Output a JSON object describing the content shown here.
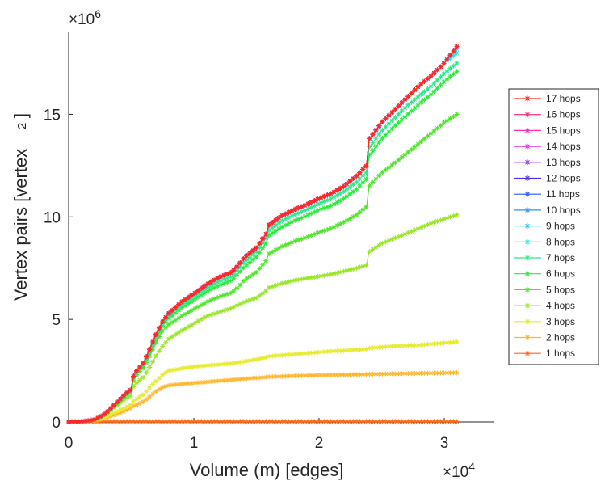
{
  "chart_data": {
    "type": "line",
    "title": "",
    "xlabel": "Volume (m) [edges]",
    "ylabel": "Vertex pairs [vertex",
    "ylabel_superscript": "2",
    "ylabel_close": "]",
    "x_exponent": {
      "base": "×10",
      "power": "4"
    },
    "y_exponent": {
      "base": "×10",
      "power": "6"
    },
    "xlim": [
      0,
      3.4
    ],
    "ylim": [
      0,
      19
    ],
    "x_ticks": [
      0,
      1,
      2,
      3
    ],
    "x_tick_labels": [
      "0",
      "1",
      "2",
      "3"
    ],
    "y_ticks": [
      0,
      5,
      10,
      15
    ],
    "y_tick_labels": [
      "0",
      "5",
      "10",
      "15"
    ],
    "x_units": "×10^4 edges",
    "y_units": "×10^6 vertex^2",
    "legend_position": "right",
    "marker": "asterisk",
    "x": [
      0,
      0.1,
      0.2,
      0.25,
      0.3,
      0.35,
      0.4,
      0.45,
      0.5,
      0.52,
      0.55,
      0.6,
      0.65,
      0.7,
      0.75,
      0.8,
      0.9,
      1.0,
      1.1,
      1.2,
      1.3,
      1.35,
      1.4,
      1.5,
      1.58,
      1.6,
      1.7,
      1.8,
      1.9,
      2.0,
      2.1,
      2.2,
      2.3,
      2.38,
      2.4,
      2.5,
      2.6,
      2.7,
      2.8,
      2.9,
      3.0,
      3.1
    ],
    "series": [
      {
        "name": "17 hops",
        "color": "#ff2a1a",
        "values": [
          0,
          0.02,
          0.1,
          0.25,
          0.45,
          0.75,
          1.05,
          1.35,
          1.6,
          2.35,
          2.55,
          2.9,
          3.6,
          4.3,
          4.9,
          5.3,
          5.85,
          6.25,
          6.7,
          7.05,
          7.3,
          7.6,
          8.0,
          8.5,
          9.2,
          9.6,
          10.05,
          10.35,
          10.6,
          10.9,
          11.15,
          11.5,
          12.0,
          12.5,
          13.8,
          14.6,
          15.2,
          15.8,
          16.4,
          16.9,
          17.5,
          18.3
        ]
      },
      {
        "name": "16 hops",
        "color": "#ff2a6e",
        "values": [
          0,
          0.02,
          0.1,
          0.25,
          0.45,
          0.75,
          1.05,
          1.35,
          1.6,
          2.35,
          2.55,
          2.9,
          3.6,
          4.3,
          4.9,
          5.3,
          5.85,
          6.25,
          6.7,
          7.05,
          7.3,
          7.6,
          8.0,
          8.5,
          9.2,
          9.6,
          10.05,
          10.35,
          10.6,
          10.9,
          11.15,
          11.5,
          12.0,
          12.5,
          13.8,
          14.6,
          15.2,
          15.8,
          16.4,
          16.9,
          17.5,
          18.3
        ]
      },
      {
        "name": "15 hops",
        "color": "#ff2ab4",
        "values": [
          0,
          0.02,
          0.1,
          0.25,
          0.45,
          0.75,
          1.05,
          1.35,
          1.6,
          2.35,
          2.55,
          2.9,
          3.6,
          4.3,
          4.9,
          5.3,
          5.85,
          6.25,
          6.7,
          7.05,
          7.3,
          7.6,
          8.0,
          8.5,
          9.2,
          9.6,
          10.05,
          10.35,
          10.6,
          10.9,
          11.15,
          11.5,
          12.0,
          12.5,
          13.8,
          14.6,
          15.2,
          15.8,
          16.4,
          16.9,
          17.5,
          18.3
        ]
      },
      {
        "name": "14 hops",
        "color": "#e52aff",
        "values": [
          0,
          0.02,
          0.1,
          0.25,
          0.45,
          0.75,
          1.05,
          1.35,
          1.6,
          2.35,
          2.55,
          2.9,
          3.6,
          4.3,
          4.9,
          5.3,
          5.85,
          6.25,
          6.7,
          7.05,
          7.3,
          7.6,
          8.0,
          8.5,
          9.2,
          9.6,
          10.05,
          10.35,
          10.6,
          10.9,
          11.15,
          11.5,
          12.0,
          12.5,
          13.8,
          14.6,
          15.2,
          15.8,
          16.4,
          16.9,
          17.5,
          18.3
        ]
      },
      {
        "name": "13 hops",
        "color": "#9a2aff",
        "values": [
          0,
          0.02,
          0.1,
          0.25,
          0.45,
          0.75,
          1.05,
          1.35,
          1.6,
          2.35,
          2.55,
          2.9,
          3.6,
          4.3,
          4.9,
          5.3,
          5.85,
          6.25,
          6.7,
          7.05,
          7.3,
          7.6,
          8.0,
          8.5,
          9.2,
          9.6,
          10.05,
          10.35,
          10.6,
          10.9,
          11.15,
          11.5,
          12.0,
          12.5,
          13.8,
          14.6,
          15.2,
          15.8,
          16.4,
          16.9,
          17.5,
          18.3
        ]
      },
      {
        "name": "12 hops",
        "color": "#4a2aff",
        "values": [
          0,
          0.02,
          0.1,
          0.25,
          0.45,
          0.75,
          1.05,
          1.35,
          1.6,
          2.35,
          2.55,
          2.9,
          3.6,
          4.3,
          4.9,
          5.3,
          5.85,
          6.25,
          6.7,
          7.05,
          7.3,
          7.6,
          8.0,
          8.5,
          9.2,
          9.6,
          10.05,
          10.35,
          10.6,
          10.9,
          11.15,
          11.5,
          12.0,
          12.5,
          13.8,
          14.6,
          15.2,
          15.8,
          16.4,
          16.9,
          17.5,
          18.3
        ]
      },
      {
        "name": "11 hops",
        "color": "#2a5aff",
        "values": [
          0,
          0.02,
          0.1,
          0.25,
          0.45,
          0.75,
          1.05,
          1.35,
          1.6,
          2.35,
          2.55,
          2.9,
          3.6,
          4.3,
          4.9,
          5.3,
          5.85,
          6.25,
          6.7,
          7.05,
          7.3,
          7.6,
          8.0,
          8.5,
          9.2,
          9.6,
          10.05,
          10.35,
          10.6,
          10.9,
          11.15,
          11.5,
          12.0,
          12.5,
          13.8,
          14.6,
          15.2,
          15.8,
          16.4,
          16.9,
          17.5,
          18.3
        ]
      },
      {
        "name": "10 hops",
        "color": "#2a96ff",
        "values": [
          0,
          0.02,
          0.1,
          0.25,
          0.45,
          0.75,
          1.05,
          1.35,
          1.6,
          2.35,
          2.55,
          2.9,
          3.6,
          4.3,
          4.9,
          5.3,
          5.85,
          6.25,
          6.7,
          7.05,
          7.3,
          7.6,
          8.0,
          8.5,
          9.2,
          9.6,
          10.05,
          10.35,
          10.6,
          10.9,
          11.15,
          11.5,
          12.0,
          12.5,
          13.8,
          14.6,
          15.2,
          15.8,
          16.4,
          16.9,
          17.5,
          18.3
        ]
      },
      {
        "name": "9 hops",
        "color": "#2ac8ff",
        "values": [
          0,
          0.02,
          0.1,
          0.25,
          0.45,
          0.75,
          1.05,
          1.35,
          1.6,
          2.35,
          2.55,
          2.9,
          3.6,
          4.3,
          4.9,
          5.3,
          5.85,
          6.25,
          6.7,
          7.05,
          7.3,
          7.6,
          8.0,
          8.5,
          9.2,
          9.6,
          10.05,
          10.35,
          10.6,
          10.9,
          11.15,
          11.5,
          12.0,
          12.5,
          13.8,
          14.6,
          15.2,
          15.8,
          16.4,
          16.9,
          17.5,
          18.2
        ]
      },
      {
        "name": "8 hops",
        "color": "#2aebd6",
        "values": [
          0,
          0.02,
          0.1,
          0.25,
          0.45,
          0.75,
          1.05,
          1.35,
          1.6,
          2.35,
          2.55,
          2.9,
          3.6,
          4.3,
          4.9,
          5.3,
          5.85,
          6.25,
          6.7,
          7.05,
          7.3,
          7.6,
          8.0,
          8.5,
          9.2,
          9.6,
          10.05,
          10.35,
          10.6,
          10.9,
          11.15,
          11.5,
          12.0,
          12.5,
          13.8,
          14.6,
          15.2,
          15.8,
          16.4,
          16.9,
          17.5,
          18.0
        ]
      },
      {
        "name": "7 hops",
        "color": "#2aeb8a",
        "values": [
          0,
          0.02,
          0.1,
          0.24,
          0.44,
          0.74,
          1.04,
          1.33,
          1.58,
          2.3,
          2.5,
          2.85,
          3.5,
          4.2,
          4.8,
          5.2,
          5.7,
          6.1,
          6.5,
          6.85,
          7.1,
          7.4,
          7.8,
          8.3,
          9.0,
          9.35,
          9.8,
          10.1,
          10.35,
          10.65,
          10.9,
          11.25,
          11.7,
          12.2,
          13.4,
          14.2,
          14.8,
          15.4,
          15.9,
          16.4,
          17.0,
          17.5
        ]
      },
      {
        "name": "6 hops",
        "color": "#2aeb3a",
        "values": [
          0,
          0.02,
          0.1,
          0.24,
          0.43,
          0.72,
          1.01,
          1.3,
          1.55,
          2.25,
          2.45,
          2.78,
          3.4,
          4.1,
          4.7,
          5.05,
          5.55,
          5.95,
          6.35,
          6.65,
          6.9,
          7.2,
          7.55,
          8.05,
          8.75,
          9.1,
          9.5,
          9.8,
          10.05,
          10.35,
          10.55,
          10.9,
          11.35,
          11.85,
          13.0,
          13.8,
          14.4,
          14.95,
          15.5,
          16.0,
          16.6,
          17.1
        ]
      },
      {
        "name": "5 hops",
        "color": "#4ee62a",
        "values": [
          0,
          0.02,
          0.1,
          0.23,
          0.42,
          0.7,
          0.98,
          1.25,
          1.5,
          2.15,
          2.35,
          2.65,
          3.25,
          3.9,
          4.45,
          4.75,
          5.15,
          5.5,
          5.85,
          6.1,
          6.3,
          6.55,
          6.9,
          7.3,
          7.9,
          8.2,
          8.55,
          8.8,
          9.0,
          9.25,
          9.45,
          9.75,
          10.1,
          10.5,
          11.5,
          12.15,
          12.6,
          13.1,
          13.6,
          14.1,
          14.6,
          15.0
        ]
      },
      {
        "name": "4 hops",
        "color": "#9ae62a",
        "values": [
          0,
          0.02,
          0.09,
          0.21,
          0.38,
          0.63,
          0.88,
          1.1,
          1.3,
          1.8,
          1.95,
          2.2,
          2.7,
          3.25,
          3.7,
          4.05,
          4.45,
          4.8,
          5.15,
          5.35,
          5.55,
          5.7,
          5.85,
          6.05,
          6.4,
          6.55,
          6.75,
          6.9,
          7.0,
          7.1,
          7.2,
          7.35,
          7.5,
          7.65,
          8.3,
          8.7,
          8.95,
          9.2,
          9.45,
          9.7,
          9.9,
          10.1
        ]
      },
      {
        "name": "3 hops",
        "color": "#e6eb2a",
        "values": [
          0,
          0.02,
          0.07,
          0.14,
          0.25,
          0.4,
          0.55,
          0.7,
          0.85,
          1.05,
          1.15,
          1.35,
          1.7,
          2.0,
          2.3,
          2.5,
          2.6,
          2.7,
          2.75,
          2.8,
          2.85,
          2.9,
          2.95,
          3.05,
          3.15,
          3.2,
          3.25,
          3.3,
          3.35,
          3.4,
          3.45,
          3.48,
          3.52,
          3.55,
          3.6,
          3.65,
          3.7,
          3.72,
          3.75,
          3.8,
          3.85,
          3.9
        ]
      },
      {
        "name": "2 hops",
        "color": "#ffb62a",
        "values": [
          0,
          0.02,
          0.06,
          0.12,
          0.2,
          0.3,
          0.42,
          0.55,
          0.7,
          0.8,
          0.85,
          1.0,
          1.25,
          1.5,
          1.7,
          1.78,
          1.85,
          1.9,
          1.95,
          2.0,
          2.05,
          2.08,
          2.1,
          2.15,
          2.18,
          2.2,
          2.22,
          2.24,
          2.26,
          2.28,
          2.29,
          2.3,
          2.31,
          2.32,
          2.33,
          2.34,
          2.35,
          2.36,
          2.37,
          2.38,
          2.39,
          2.4
        ]
      },
      {
        "name": "1 hops",
        "color": "#ff6a1a",
        "values": [
          0,
          0.01,
          0.01,
          0.02,
          0.02,
          0.02,
          0.02,
          0.02,
          0.02,
          0.02,
          0.02,
          0.02,
          0.02,
          0.02,
          0.02,
          0.02,
          0.02,
          0.02,
          0.02,
          0.02,
          0.02,
          0.02,
          0.02,
          0.02,
          0.02,
          0.02,
          0.02,
          0.02,
          0.02,
          0.02,
          0.02,
          0.02,
          0.02,
          0.02,
          0.02,
          0.02,
          0.02,
          0.02,
          0.02,
          0.02,
          0.02,
          0.02
        ]
      }
    ]
  }
}
